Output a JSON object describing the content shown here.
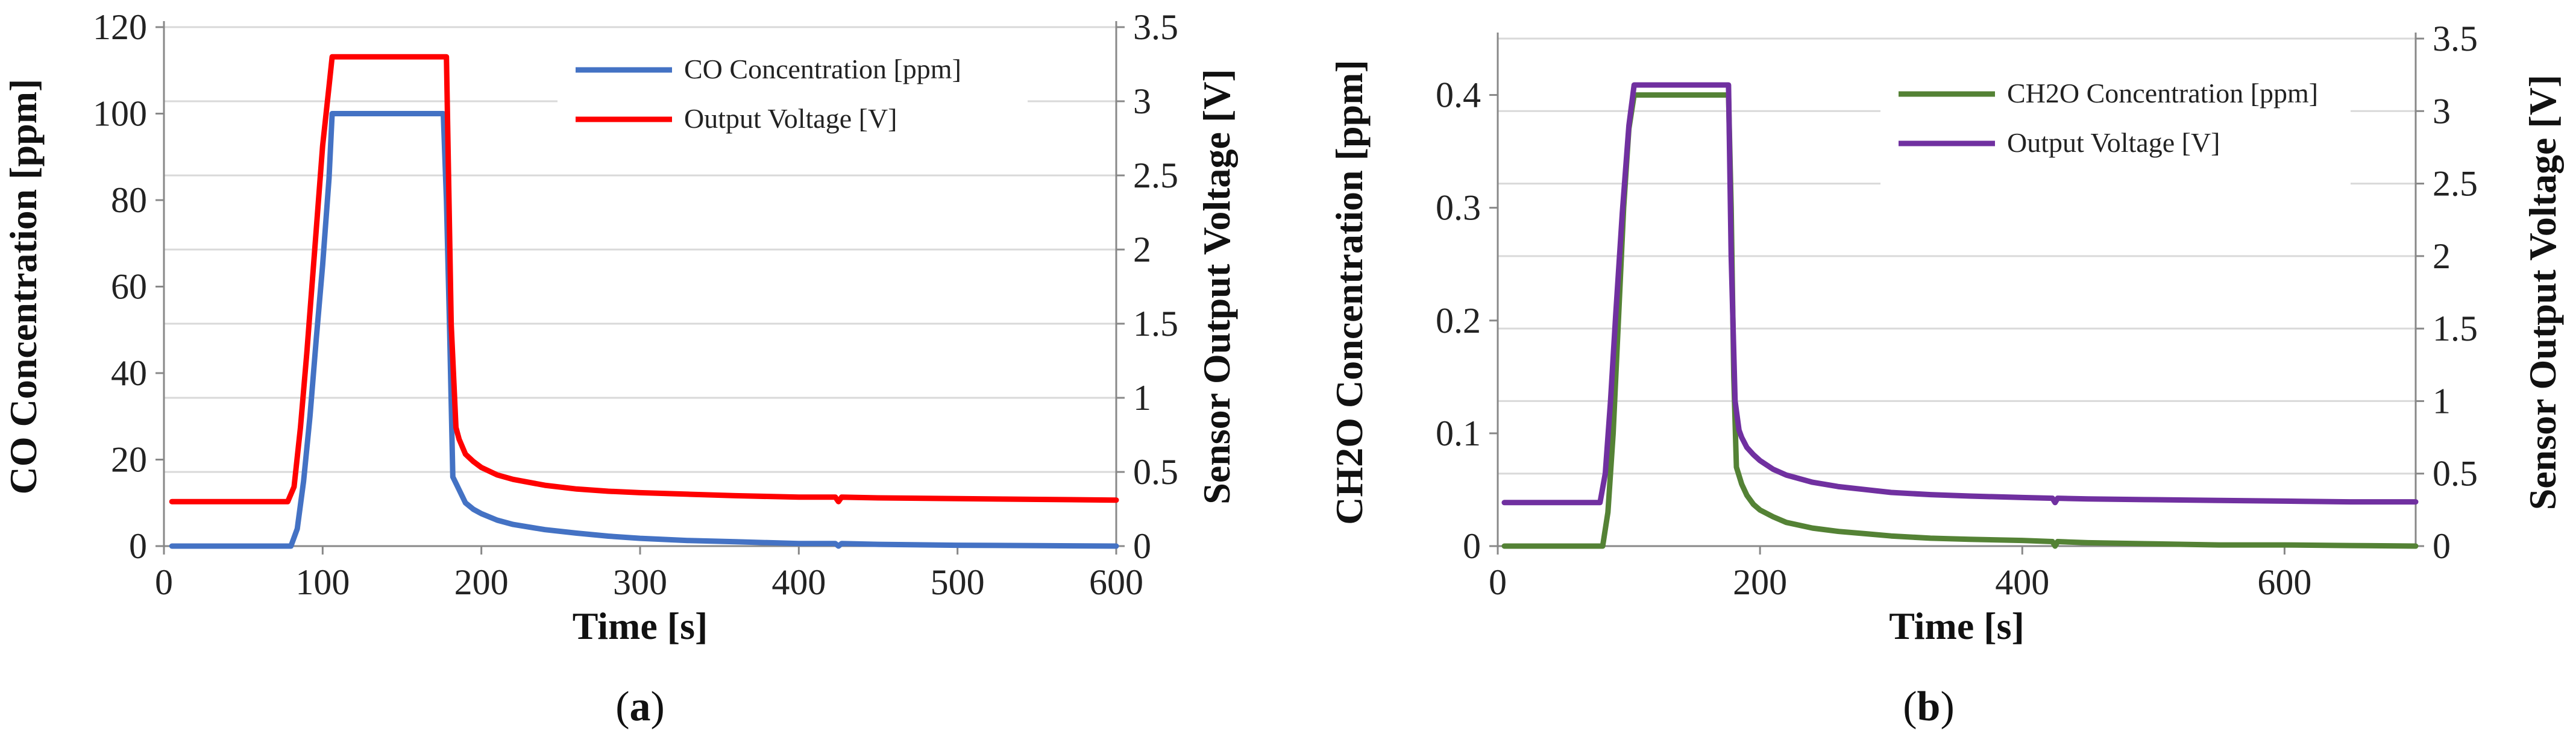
{
  "chart_data": [
    {
      "type": "line",
      "panel_label": "a",
      "caption_open": "(",
      "caption_close": ")",
      "xlabel": "Time [s]",
      "ylabel": "CO Concentration [ppm]",
      "y2label": "Sensor Output Voltage [V]",
      "xlim": [
        0,
        600
      ],
      "ylim": [
        0,
        120
      ],
      "y2lim": [
        0,
        3.5
      ],
      "xticks": [
        0,
        100,
        200,
        300,
        400,
        500,
        600
      ],
      "yticks": [
        0,
        20,
        40,
        60,
        80,
        100,
        120
      ],
      "y2ticks": [
        0,
        0.5,
        1,
        1.5,
        2,
        2.5,
        3,
        3.5
      ],
      "grid": true,
      "legend_position": "top-right",
      "series": [
        {
          "name": "CO Concentration [ppm]",
          "axis": "left",
          "color": "#4472C4",
          "x": [
            5,
            80,
            84,
            88,
            92,
            96,
            100,
            104,
            106,
            110,
            150,
            176,
            178,
            180,
            182,
            186,
            190,
            195,
            200,
            210,
            220,
            240,
            260,
            280,
            300,
            330,
            360,
            400,
            423,
            425,
            427,
            450,
            500,
            550,
            600
          ],
          "y": [
            0,
            0,
            4,
            15,
            30,
            48,
            65,
            85,
            100,
            100,
            100,
            100,
            80,
            50,
            16,
            13,
            10,
            8.5,
            7.5,
            6,
            5,
            3.8,
            3,
            2.3,
            1.8,
            1.3,
            1,
            0.6,
            0.6,
            0,
            0.6,
            0.4,
            0.2,
            0.1,
            0
          ]
        },
        {
          "name": "Output Voltage [V]",
          "axis": "right",
          "color": "#FF0000",
          "x": [
            5,
            78,
            82,
            86,
            90,
            95,
            100,
            104,
            106,
            110,
            150,
            178,
            181,
            184,
            186,
            190,
            195,
            200,
            210,
            220,
            240,
            260,
            280,
            300,
            330,
            360,
            400,
            423,
            425,
            427,
            450,
            500,
            550,
            600
          ],
          "y": [
            0.3,
            0.3,
            0.4,
            0.8,
            1.3,
            2.0,
            2.7,
            3.1,
            3.3,
            3.3,
            3.3,
            3.3,
            1.5,
            0.8,
            0.72,
            0.62,
            0.57,
            0.53,
            0.48,
            0.45,
            0.41,
            0.385,
            0.37,
            0.36,
            0.35,
            0.34,
            0.33,
            0.33,
            0.3,
            0.33,
            0.325,
            0.32,
            0.315,
            0.31
          ]
        }
      ]
    },
    {
      "type": "line",
      "panel_label": "b",
      "caption_open": "(",
      "caption_close": ")",
      "xlabel": "Time [s]",
      "ylabel": "CH2O Concentration [ppm]",
      "y2label": "Sensor Output Voltage [V]",
      "xlim": [
        0,
        700
      ],
      "ylim": [
        0,
        0.45
      ],
      "y2lim": [
        0,
        3.5
      ],
      "xticks": [
        0,
        200,
        400,
        600
      ],
      "yticks": [
        0,
        0.1,
        0.2,
        0.3,
        0.4
      ],
      "y2ticks": [
        0,
        0.5,
        1,
        1.5,
        2,
        2.5,
        3,
        3.5
      ],
      "grid": true,
      "legend_position": "top-right",
      "series": [
        {
          "name": "CH2O Concentration [ppm]",
          "axis": "left",
          "color": "#548235",
          "x": [
            5,
            80,
            84,
            88,
            92,
            96,
            100,
            104,
            108,
            150,
            176,
            178,
            180,
            182,
            186,
            190,
            195,
            200,
            210,
            220,
            240,
            260,
            280,
            300,
            330,
            360,
            400,
            423,
            425,
            427,
            450,
            500,
            550,
            600,
            650,
            700
          ],
          "y": [
            0,
            0,
            0.03,
            0.1,
            0.2,
            0.3,
            0.37,
            0.4,
            0.4,
            0.4,
            0.4,
            0.3,
            0.15,
            0.07,
            0.055,
            0.045,
            0.037,
            0.032,
            0.026,
            0.021,
            0.016,
            0.013,
            0.011,
            0.009,
            0.007,
            0.006,
            0.005,
            0.004,
            0,
            0.004,
            0.003,
            0.002,
            0.001,
            0.001,
            0.0005,
            0
          ]
        },
        {
          "name": "Output Voltage [V]",
          "axis": "right",
          "color": "#7030A0",
          "x": [
            5,
            78,
            82,
            86,
            90,
            95,
            100,
            104,
            108,
            150,
            176,
            178,
            181,
            184,
            186,
            190,
            195,
            200,
            210,
            220,
            240,
            260,
            280,
            300,
            330,
            360,
            400,
            423,
            425,
            427,
            450,
            500,
            550,
            600,
            650,
            700
          ],
          "y": [
            0.3,
            0.3,
            0.5,
            1.0,
            1.6,
            2.3,
            2.9,
            3.18,
            3.18,
            3.18,
            3.18,
            2.0,
            1.0,
            0.8,
            0.75,
            0.68,
            0.63,
            0.59,
            0.53,
            0.49,
            0.44,
            0.41,
            0.39,
            0.37,
            0.355,
            0.345,
            0.335,
            0.33,
            0.3,
            0.33,
            0.325,
            0.32,
            0.315,
            0.31,
            0.305,
            0.305
          ]
        }
      ]
    }
  ]
}
